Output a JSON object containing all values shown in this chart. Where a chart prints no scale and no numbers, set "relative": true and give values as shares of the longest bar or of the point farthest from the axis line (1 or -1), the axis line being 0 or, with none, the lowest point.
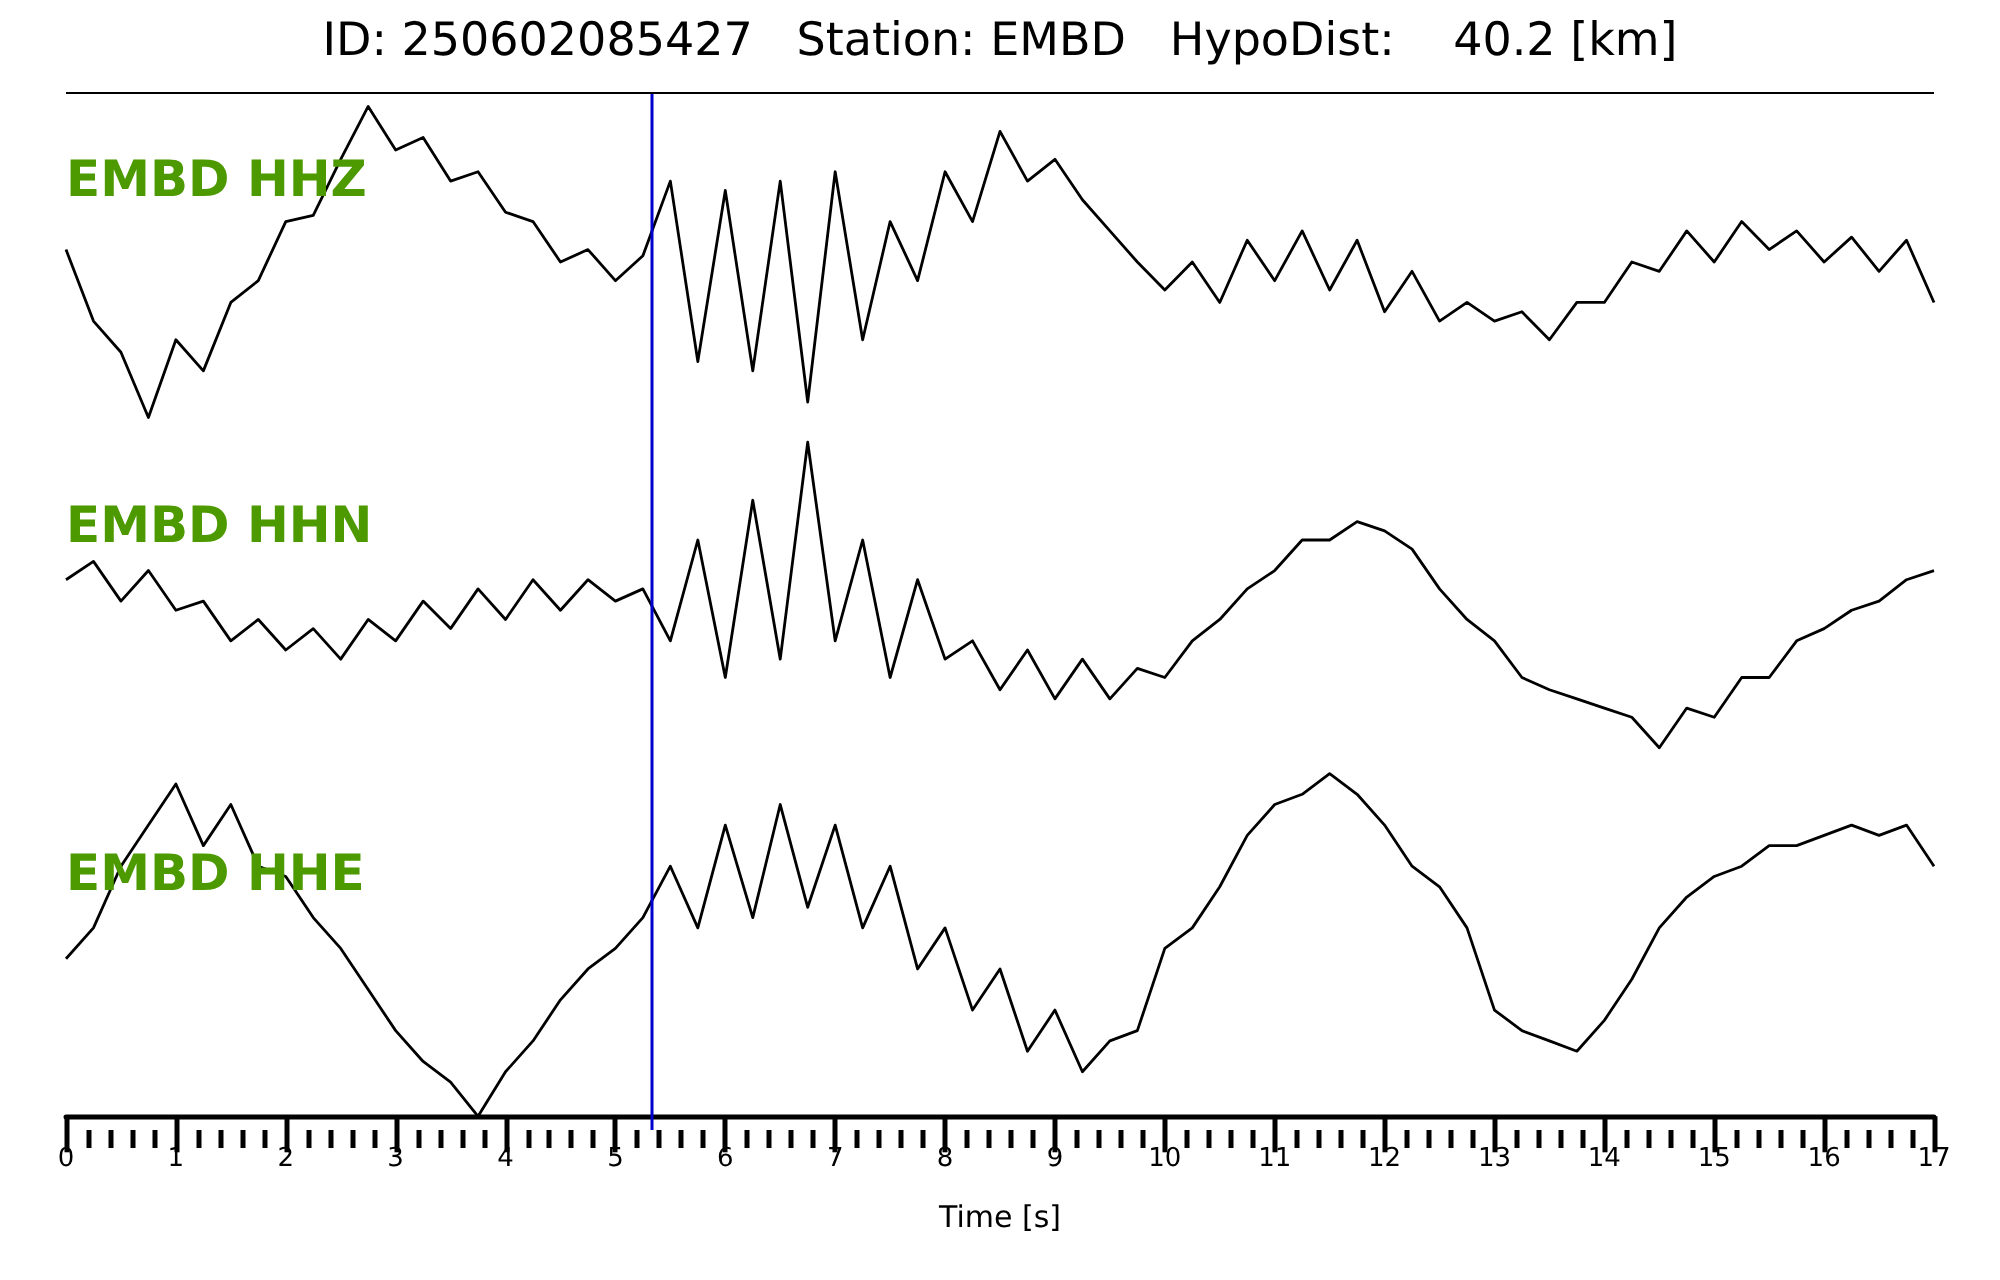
{
  "chart_data": [
    {
      "type": "line",
      "title": "ID: 250602085427   Station: EMBD   HypoDist:    40.2 [km]",
      "relative": true,
      "tick_labels": false,
      "xlim": [
        0,
        17
      ],
      "annotations": [
        "EMBD HHZ"
      ],
      "ref_lines": [
        {
          "axis": "x",
          "value": 5.33,
          "color": "#0000cc"
        }
      ],
      "x": [
        0,
        0.25,
        0.5,
        0.75,
        1,
        1.25,
        1.5,
        1.75,
        2,
        2.25,
        2.5,
        2.75,
        3,
        3.25,
        3.5,
        3.75,
        4,
        4.25,
        4.5,
        4.75,
        5,
        5.25,
        5.5,
        5.75,
        6,
        6.25,
        6.5,
        6.75,
        7,
        7.25,
        7.5,
        7.75,
        8,
        8.25,
        8.5,
        8.75,
        9,
        9.25,
        9.5,
        9.75,
        10,
        10.25,
        10.5,
        10.75,
        11,
        11.25,
        11.5,
        11.75,
        12,
        12.25,
        12.5,
        12.75,
        13,
        13.25,
        13.5,
        13.75,
        14,
        14.25,
        14.5,
        14.75,
        15,
        15.25,
        15.5,
        15.75,
        16,
        16.25,
        16.5,
        16.75,
        17
      ],
      "series": [
        {
          "color": "#000000",
          "values": [
            0.54,
            0.31,
            0.21,
            0,
            0.25,
            0.15,
            0.37,
            0.44,
            0.63,
            0.65,
            0.83,
            1,
            0.86,
            0.9,
            0.76,
            0.79,
            0.66,
            0.63,
            0.5,
            0.54,
            0.44,
            0.52,
            0.76,
            0.18,
            0.73,
            0.15,
            0.76,
            0.05,
            0.79,
            0.25,
            0.63,
            0.44,
            0.79,
            0.63,
            0.92,
            0.76,
            0.83,
            0.7,
            0.6,
            0.5,
            0.41,
            0.5,
            0.37,
            0.57,
            0.44,
            0.6,
            0.41,
            0.57,
            0.34,
            0.47,
            0.31,
            0.37,
            0.31,
            0.34,
            0.25,
            0.37,
            0.37,
            0.5,
            0.47,
            0.6,
            0.5,
            0.63,
            0.54,
            0.6,
            0.5,
            0.58,
            0.47,
            0.57,
            0.37
          ]
        }
      ]
    },
    {
      "type": "line",
      "relative": true,
      "tick_labels": false,
      "xlim": [
        0,
        17
      ],
      "annotations": [
        "EMBD HHN"
      ],
      "ref_lines": [
        {
          "axis": "x",
          "value": 5.33,
          "color": "#0000cc"
        }
      ],
      "x": [
        0,
        0.25,
        0.5,
        0.75,
        1,
        1.25,
        1.5,
        1.75,
        2,
        2.25,
        2.5,
        2.75,
        3,
        3.25,
        3.5,
        3.75,
        4,
        4.25,
        4.5,
        4.75,
        5,
        5.25,
        5.5,
        5.75,
        6,
        6.25,
        6.5,
        6.75,
        7,
        7.25,
        7.5,
        7.75,
        8,
        8.25,
        8.5,
        8.75,
        9,
        9.25,
        9.5,
        9.75,
        10,
        10.25,
        10.5,
        10.75,
        11,
        11.25,
        11.5,
        11.75,
        12,
        12.25,
        12.5,
        12.75,
        13,
        13.25,
        13.5,
        13.75,
        14,
        14.25,
        14.5,
        14.75,
        15,
        15.25,
        15.5,
        15.75,
        16,
        16.25,
        16.5,
        16.75,
        17
      ],
      "series": [
        {
          "color": "#000000",
          "values": [
            0.55,
            0.61,
            0.48,
            0.58,
            0.45,
            0.48,
            0.35,
            0.42,
            0.32,
            0.39,
            0.29,
            0.42,
            0.35,
            0.48,
            0.39,
            0.52,
            0.42,
            0.55,
            0.45,
            0.55,
            0.48,
            0.52,
            0.35,
            0.68,
            0.23,
            0.81,
            0.29,
            1,
            0.35,
            0.68,
            0.23,
            0.55,
            0.29,
            0.35,
            0.19,
            0.32,
            0.16,
            0.29,
            0.16,
            0.26,
            0.23,
            0.35,
            0.42,
            0.52,
            0.58,
            0.68,
            0.68,
            0.74,
            0.71,
            0.65,
            0.52,
            0.42,
            0.35,
            0.23,
            0.19,
            0.16,
            0.13,
            0.1,
            0,
            0.13,
            0.1,
            0.23,
            0.23,
            0.35,
            0.39,
            0.45,
            0.48,
            0.55,
            0.58
          ]
        }
      ]
    },
    {
      "type": "line",
      "relative": true,
      "xlabel": "Time [s]",
      "xlim": [
        0,
        17
      ],
      "annotations": [
        "EMBD HHE"
      ],
      "ref_lines": [
        {
          "axis": "x",
          "value": 5.33,
          "color": "#0000cc"
        }
      ],
      "xticks": [
        0,
        1,
        2,
        3,
        4,
        5,
        6,
        7,
        8,
        9,
        10,
        11,
        12,
        13,
        14,
        15,
        16,
        17,
        {
          "value": 0.2,
          "label": null
        },
        {
          "value": 0.4,
          "label": null
        },
        {
          "value": 0.6,
          "label": null
        },
        {
          "value": 0.8,
          "label": null
        },
        {
          "value": 1.2,
          "label": null
        },
        {
          "value": 1.4,
          "label": null
        },
        {
          "value": 1.6,
          "label": null
        },
        {
          "value": 1.8,
          "label": null
        },
        {
          "value": 2.2,
          "label": null
        },
        {
          "value": 2.4,
          "label": null
        },
        {
          "value": 2.6,
          "label": null
        },
        {
          "value": 2.8,
          "label": null
        },
        {
          "value": 3.2,
          "label": null
        },
        {
          "value": 3.4,
          "label": null
        },
        {
          "value": 3.6,
          "label": null
        },
        {
          "value": 3.8,
          "label": null
        },
        {
          "value": 4.2,
          "label": null
        },
        {
          "value": 4.4,
          "label": null
        },
        {
          "value": 4.6,
          "label": null
        },
        {
          "value": 4.8,
          "label": null
        },
        {
          "value": 5.2,
          "label": null
        },
        {
          "value": 5.4,
          "label": null
        },
        {
          "value": 5.6,
          "label": null
        },
        {
          "value": 5.8,
          "label": null
        },
        {
          "value": 6.2,
          "label": null
        },
        {
          "value": 6.4,
          "label": null
        },
        {
          "value": 6.6,
          "label": null
        },
        {
          "value": 6.8,
          "label": null
        },
        {
          "value": 7.2,
          "label": null
        },
        {
          "value": 7.4,
          "label": null
        },
        {
          "value": 7.6,
          "label": null
        },
        {
          "value": 7.8,
          "label": null
        },
        {
          "value": 8.2,
          "label": null
        },
        {
          "value": 8.4,
          "label": null
        },
        {
          "value": 8.6,
          "label": null
        },
        {
          "value": 8.8,
          "label": null
        },
        {
          "value": 9.2,
          "label": null
        },
        {
          "value": 9.4,
          "label": null
        },
        {
          "value": 9.6,
          "label": null
        },
        {
          "value": 9.8,
          "label": null
        },
        {
          "value": 10.2,
          "label": null
        },
        {
          "value": 10.4,
          "label": null
        },
        {
          "value": 10.6,
          "label": null
        },
        {
          "value": 10.8,
          "label": null
        },
        {
          "value": 11.2,
          "label": null
        },
        {
          "value": 11.4,
          "label": null
        },
        {
          "value": 11.6,
          "label": null
        },
        {
          "value": 11.8,
          "label": null
        },
        {
          "value": 12.2,
          "label": null
        },
        {
          "value": 12.4,
          "label": null
        },
        {
          "value": 12.6,
          "label": null
        },
        {
          "value": 12.8,
          "label": null
        },
        {
          "value": 13.2,
          "label": null
        },
        {
          "value": 13.4,
          "label": null
        },
        {
          "value": 13.6,
          "label": null
        },
        {
          "value": 13.8,
          "label": null
        },
        {
          "value": 14.2,
          "label": null
        },
        {
          "value": 14.4,
          "label": null
        },
        {
          "value": 14.6,
          "label": null
        },
        {
          "value": 14.8,
          "label": null
        },
        {
          "value": 15.2,
          "label": null
        },
        {
          "value": 15.4,
          "label": null
        },
        {
          "value": 15.6,
          "label": null
        },
        {
          "value": 15.8,
          "label": null
        },
        {
          "value": 16.2,
          "label": null
        },
        {
          "value": 16.4,
          "label": null
        },
        {
          "value": 16.6,
          "label": null
        },
        {
          "value": 16.8,
          "label": null
        }
      ],
      "x": [
        0,
        0.25,
        0.5,
        0.75,
        1,
        1.25,
        1.5,
        1.75,
        2,
        2.25,
        2.5,
        2.75,
        3,
        3.25,
        3.5,
        3.75,
        4,
        4.25,
        4.5,
        4.75,
        5,
        5.25,
        5.5,
        5.75,
        6,
        6.25,
        6.5,
        6.75,
        7,
        7.25,
        7.5,
        7.75,
        8,
        8.25,
        8.5,
        8.75,
        9,
        9.25,
        9.5,
        9.75,
        10,
        10.25,
        10.5,
        10.75,
        11,
        11.25,
        11.5,
        11.75,
        12,
        12.25,
        12.5,
        12.75,
        13,
        13.25,
        13.5,
        13.75,
        14,
        14.25,
        14.5,
        14.75,
        15,
        15.25,
        15.5,
        15.75,
        16,
        16.25,
        16.5,
        16.75,
        17
      ],
      "series": [
        {
          "color": "#000000",
          "values": [
            0.46,
            0.55,
            0.73,
            0.85,
            0.97,
            0.79,
            0.91,
            0.73,
            0.7,
            0.58,
            0.49,
            0.37,
            0.25,
            0.16,
            0.1,
            0,
            0.13,
            0.22,
            0.34,
            0.43,
            0.49,
            0.58,
            0.73,
            0.55,
            0.85,
            0.58,
            0.91,
            0.61,
            0.85,
            0.55,
            0.73,
            0.43,
            0.55,
            0.31,
            0.43,
            0.19,
            0.31,
            0.13,
            0.22,
            0.25,
            0.49,
            0.55,
            0.67,
            0.82,
            0.91,
            0.94,
            1,
            0.94,
            0.85,
            0.73,
            0.67,
            0.55,
            0.31,
            0.25,
            0.22,
            0.19,
            0.28,
            0.4,
            0.55,
            0.64,
            0.7,
            0.73,
            0.79,
            0.79,
            0.82,
            0.85,
            0.82,
            0.85,
            0.73
          ]
        }
      ]
    }
  ]
}
